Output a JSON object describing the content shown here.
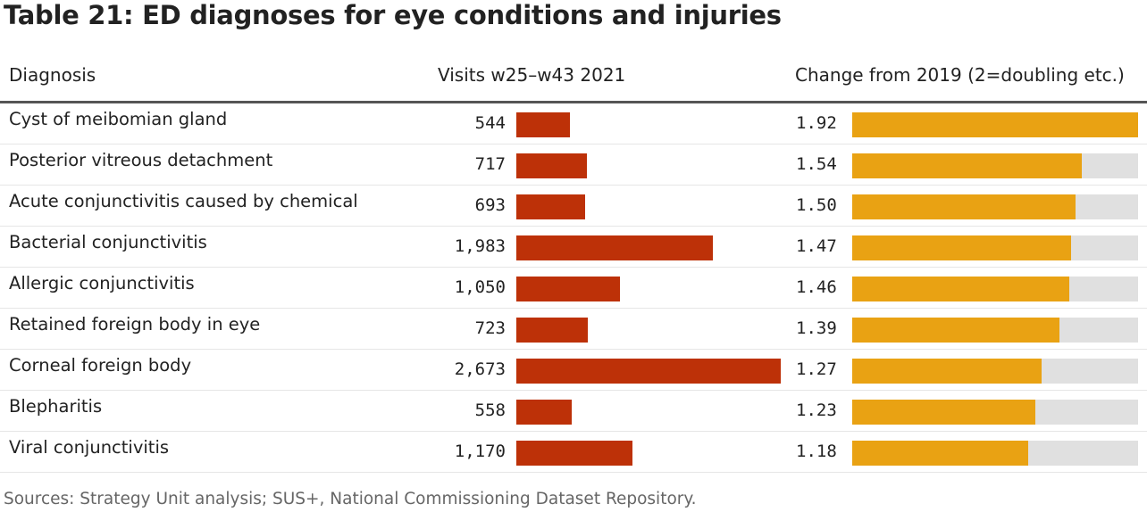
{
  "title": "Table 21: ED diagnoses for eye conditions and injuries",
  "source": "Sources: Strategy Unit analysis; SUS+, National Commissioning Dataset Repository.",
  "colors": {
    "visits_bar": "#bd3108",
    "change_bar": "#e9a213",
    "change_bg": "#e0e0e0"
  },
  "chart_data": {
    "type": "table",
    "title": "Table 21: ED diagnoses for eye conditions and injuries",
    "columns": [
      "Diagnosis",
      "Visits w25–w43 2021",
      "Change from 2019 (2=doubling etc.)"
    ],
    "visits_max": 2673,
    "change_max": 1.92,
    "rows": [
      {
        "diagnosis": "Cyst of meibomian gland",
        "visits": 544,
        "visits_label": "544",
        "change": 1.92,
        "change_label": "1.92"
      },
      {
        "diagnosis": "Posterior vitreous detachment",
        "visits": 717,
        "visits_label": "717",
        "change": 1.54,
        "change_label": "1.54"
      },
      {
        "diagnosis": "Acute conjunctivitis caused by chemical",
        "visits": 693,
        "visits_label": "693",
        "change": 1.5,
        "change_label": "1.50"
      },
      {
        "diagnosis": "Bacterial conjunctivitis",
        "visits": 1983,
        "visits_label": "1,983",
        "change": 1.47,
        "change_label": "1.47"
      },
      {
        "diagnosis": "Allergic conjunctivitis",
        "visits": 1050,
        "visits_label": "1,050",
        "change": 1.46,
        "change_label": "1.46"
      },
      {
        "diagnosis": "Retained foreign body in eye",
        "visits": 723,
        "visits_label": "723",
        "change": 1.39,
        "change_label": "1.39"
      },
      {
        "diagnosis": "Corneal foreign body",
        "visits": 2673,
        "visits_label": "2,673",
        "change": 1.27,
        "change_label": "1.27"
      },
      {
        "diagnosis": "Blepharitis",
        "visits": 558,
        "visits_label": "558",
        "change": 1.23,
        "change_label": "1.23"
      },
      {
        "diagnosis": "Viral conjunctivitis",
        "visits": 1170,
        "visits_label": "1,170",
        "change": 1.18,
        "change_label": "1.18"
      }
    ]
  }
}
